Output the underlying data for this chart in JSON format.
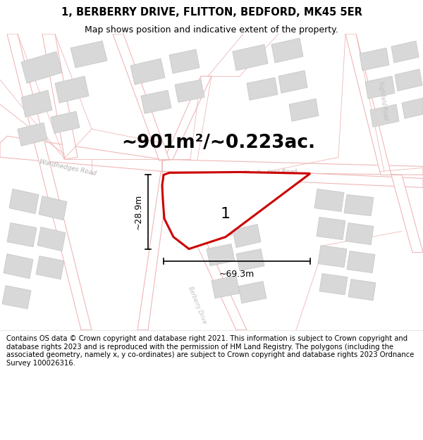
{
  "title_line1": "1, BERBERRY DRIVE, FLITTON, BEDFORD, MK45 5ER",
  "title_line2": "Map shows position and indicative extent of the property.",
  "area_text": "~901m²/~0.223ac.",
  "label_number": "1",
  "dim_width": "~69.3m",
  "dim_height": "~28.9m",
  "footnote": "Contains OS data © Crown copyright and database right 2021. This information is subject to Crown copyright and database rights 2023 and is reproduced with the permission of HM Land Registry. The polygons (including the associated geometry, namely x, y co-ordinates) are subject to Crown copyright and database rights 2023 Ordnance Survey 100026316.",
  "bg_color": "#ffffff",
  "road_outline_color": "#f0b8b8",
  "road_fill_color": "#f8f0f0",
  "building_fill": "#d8d8d8",
  "building_edge": "#c8c8c8",
  "plot_stroke": "#cc0000",
  "road_label_color": "#aaaaaa",
  "title_fontsize": 10.5,
  "subtitle_fontsize": 9,
  "area_fontsize": 19,
  "dim_fontsize": 9,
  "footnote_fontsize": 7.2,
  "num_label_fontsize": 16
}
